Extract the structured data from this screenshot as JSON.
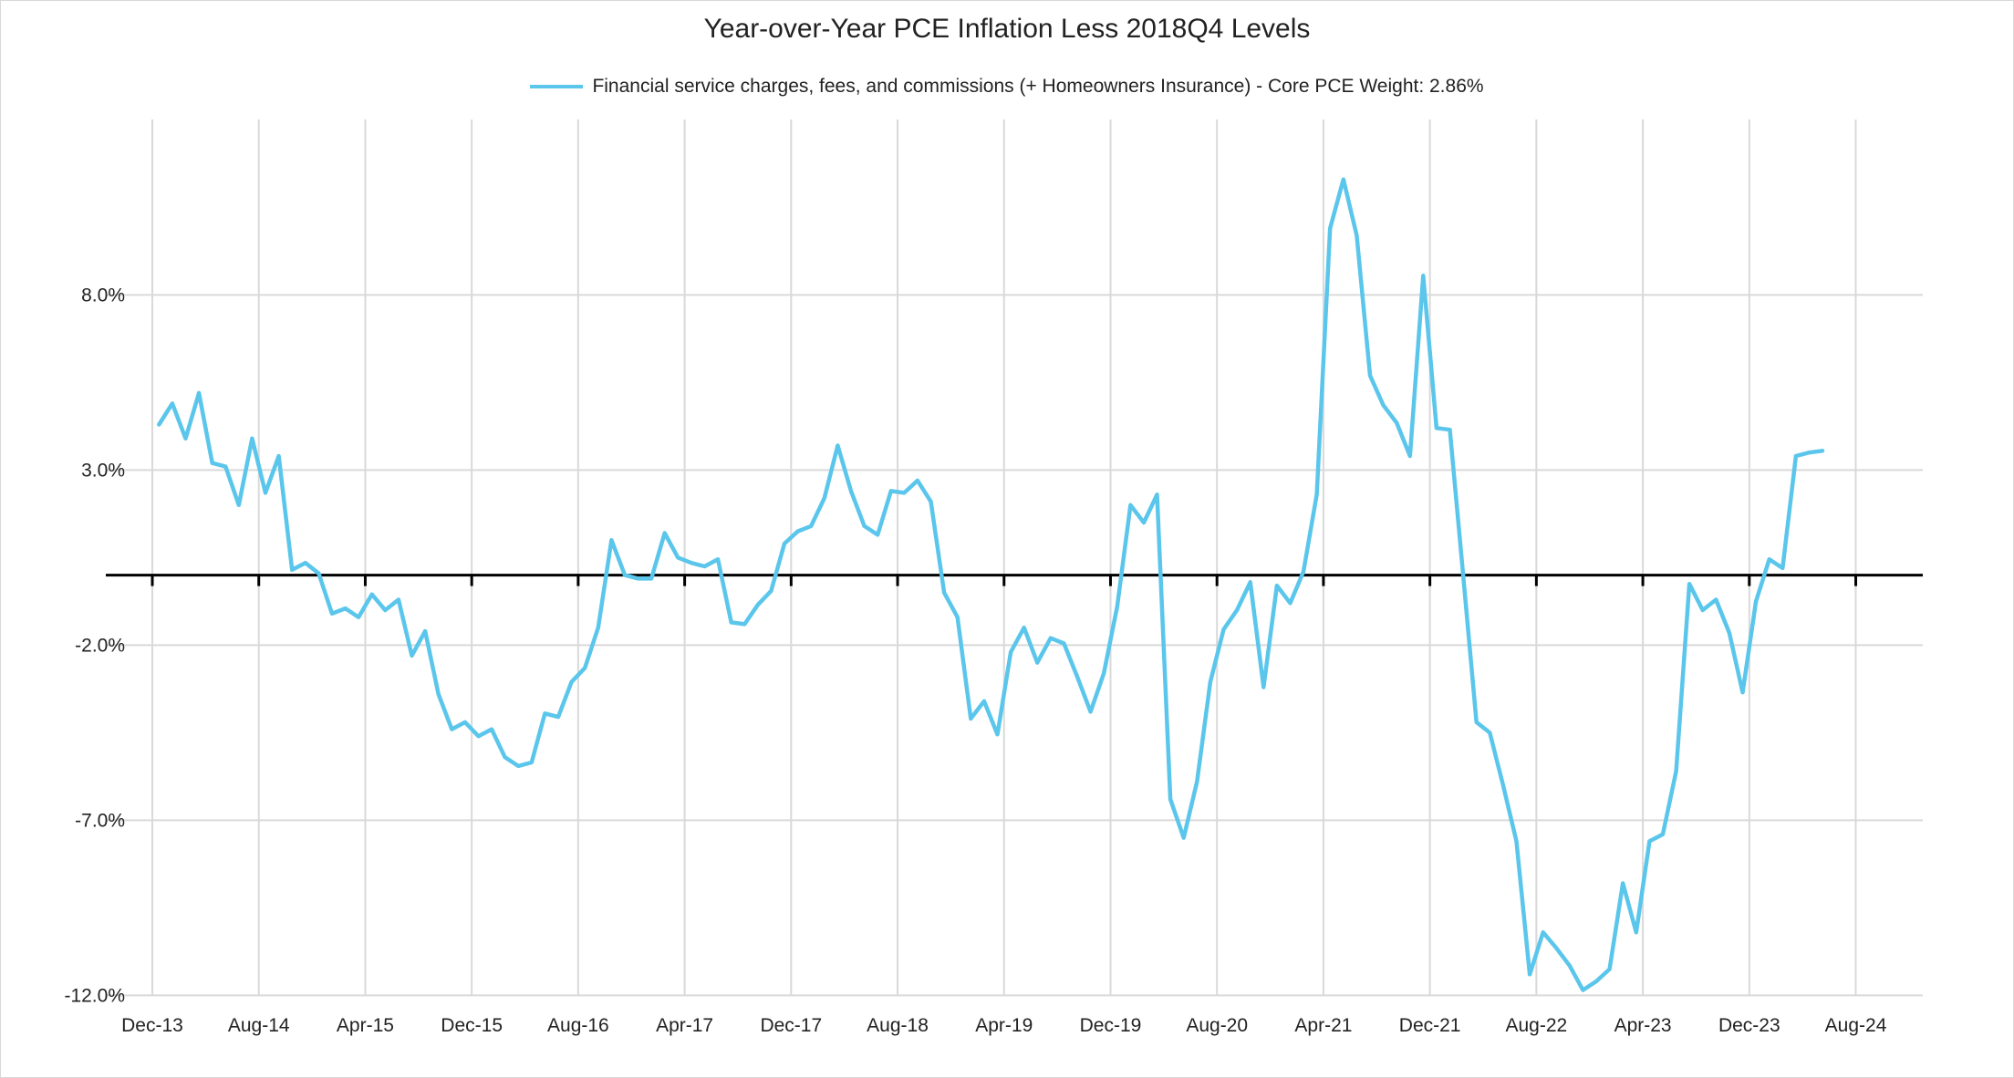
{
  "title": "Year-over-Year PCE Inflation Less 2018Q4 Levels",
  "legend": {
    "label": "Financial service charges, fees, and commissions (+ Homeowners Insurance) - Core PCE Weight: 2.86%",
    "position": "top"
  },
  "colors": {
    "series": "#5BC6EB",
    "gridline": "#D9D9D9",
    "zero_axis": "#000000",
    "text": "#222222"
  },
  "chart_data": {
    "type": "line",
    "title": "Year-over-Year PCE Inflation Less 2018Q4 Levels",
    "xlabel": "",
    "ylabel": "",
    "grid": true,
    "legend_position": "top",
    "ylim": [
      -12.0,
      13.0
    ],
    "y_ticks": {
      "labels": [
        "8.0%",
        "3.0%",
        "-2.0%",
        "-7.0%",
        "-12.0%"
      ],
      "values": [
        8,
        3,
        -2,
        -7,
        -12
      ]
    },
    "x_ticks": {
      "labels": [
        "Dec-13",
        "Aug-14",
        "Apr-15",
        "Dec-15",
        "Aug-16",
        "Apr-17",
        "Dec-17",
        "Aug-18",
        "Apr-19",
        "Dec-19",
        "Aug-20",
        "Apr-21",
        "Dec-21",
        "Aug-22",
        "Apr-23",
        "Dec-23",
        "Aug-24"
      ],
      "interval_months": 8
    },
    "series": [
      {
        "name": "Financial service charges, fees, and commissions (+ Homeowners Insurance) - Core PCE Weight: 2.86%",
        "color": "#5BC6EB",
        "x": [
          "Dec-13",
          "Jan-14",
          "Feb-14",
          "Mar-14",
          "Apr-14",
          "May-14",
          "Jun-14",
          "Jul-14",
          "Aug-14",
          "Sep-14",
          "Oct-14",
          "Nov-14",
          "Dec-14",
          "Jan-15",
          "Feb-15",
          "Mar-15",
          "Apr-15",
          "May-15",
          "Jun-15",
          "Jul-15",
          "Aug-15",
          "Sep-15",
          "Oct-15",
          "Nov-15",
          "Dec-15",
          "Jan-16",
          "Feb-16",
          "Mar-16",
          "Apr-16",
          "May-16",
          "Jun-16",
          "Jul-16",
          "Aug-16",
          "Sep-16",
          "Oct-16",
          "Nov-16",
          "Dec-16",
          "Jan-17",
          "Feb-17",
          "Mar-17",
          "Apr-17",
          "May-17",
          "Jun-17",
          "Jul-17",
          "Aug-17",
          "Sep-17",
          "Oct-17",
          "Nov-17",
          "Dec-17",
          "Jan-18",
          "Feb-18",
          "Mar-18",
          "Apr-18",
          "May-18",
          "Jun-18",
          "Jul-18",
          "Aug-18",
          "Sep-18",
          "Oct-18",
          "Nov-18",
          "Dec-18",
          "Jan-19",
          "Feb-19",
          "Mar-19",
          "Apr-19",
          "May-19",
          "Jun-19",
          "Jul-19",
          "Aug-19",
          "Sep-19",
          "Oct-19",
          "Nov-19",
          "Dec-19",
          "Jan-20",
          "Feb-20",
          "Mar-20",
          "Apr-20",
          "May-20",
          "Jun-20",
          "Jul-20",
          "Aug-20",
          "Sep-20",
          "Oct-20",
          "Nov-20",
          "Dec-20",
          "Jan-21",
          "Feb-21",
          "Mar-21",
          "Apr-21",
          "May-21",
          "Jun-21",
          "Jul-21",
          "Aug-21",
          "Sep-21",
          "Oct-21",
          "Nov-21",
          "Dec-21",
          "Jan-22",
          "Feb-22",
          "Mar-22",
          "Apr-22",
          "May-22",
          "Jun-22",
          "Jul-22",
          "Aug-22",
          "Sep-22",
          "Oct-22",
          "Nov-22",
          "Dec-22",
          "Jan-23",
          "Feb-23",
          "Mar-23",
          "Apr-23",
          "May-23",
          "Jun-23",
          "Jul-23",
          "Aug-23",
          "Sep-23",
          "Oct-23",
          "Nov-23",
          "Dec-23",
          "Jan-24",
          "Feb-24",
          "Mar-24",
          "Apr-24",
          "May-24"
        ],
        "values": [
          4.3,
          4.9,
          3.9,
          5.2,
          3.2,
          3.1,
          2.0,
          3.9,
          2.35,
          3.4,
          0.15,
          0.35,
          0.05,
          -1.1,
          -0.95,
          -1.2,
          -0.55,
          -1.0,
          -0.7,
          -2.3,
          -1.6,
          -3.4,
          -4.4,
          -4.2,
          -4.6,
          -4.4,
          -5.2,
          -5.45,
          -5.35,
          -3.95,
          -4.05,
          -3.05,
          -2.65,
          -1.5,
          1.0,
          0.0,
          -0.1,
          -0.1,
          1.2,
          0.5,
          0.35,
          0.25,
          0.45,
          -1.35,
          -1.4,
          -0.85,
          -0.45,
          0.9,
          1.25,
          1.4,
          2.2,
          3.7,
          2.4,
          1.4,
          1.15,
          2.4,
          2.35,
          2.7,
          2.1,
          -0.5,
          -1.2,
          -4.1,
          -3.6,
          -4.55,
          -2.2,
          -1.5,
          -2.5,
          -1.8,
          -1.95,
          -2.9,
          -3.9,
          -2.8,
          -0.9,
          2.0,
          1.5,
          2.3,
          -6.4,
          -7.5,
          -5.9,
          -3.05,
          -1.55,
          -1.0,
          -0.2,
          -3.2,
          -0.3,
          -0.8,
          0.1,
          2.3,
          9.9,
          11.3,
          9.7,
          5.7,
          4.85,
          4.35,
          3.4,
          8.55,
          4.2,
          4.15,
          0.0,
          -4.2,
          -4.5,
          -6.0,
          -7.6,
          -11.4,
          -10.2,
          -10.65,
          -11.15,
          -11.85,
          -11.6,
          -11.25,
          -8.8,
          -10.2,
          -7.6,
          -7.4,
          -5.6,
          -0.25,
          -1.0,
          -0.7,
          -1.65,
          -3.35,
          -0.75,
          0.45,
          0.2,
          3.4,
          3.5,
          3.55
        ]
      }
    ]
  }
}
